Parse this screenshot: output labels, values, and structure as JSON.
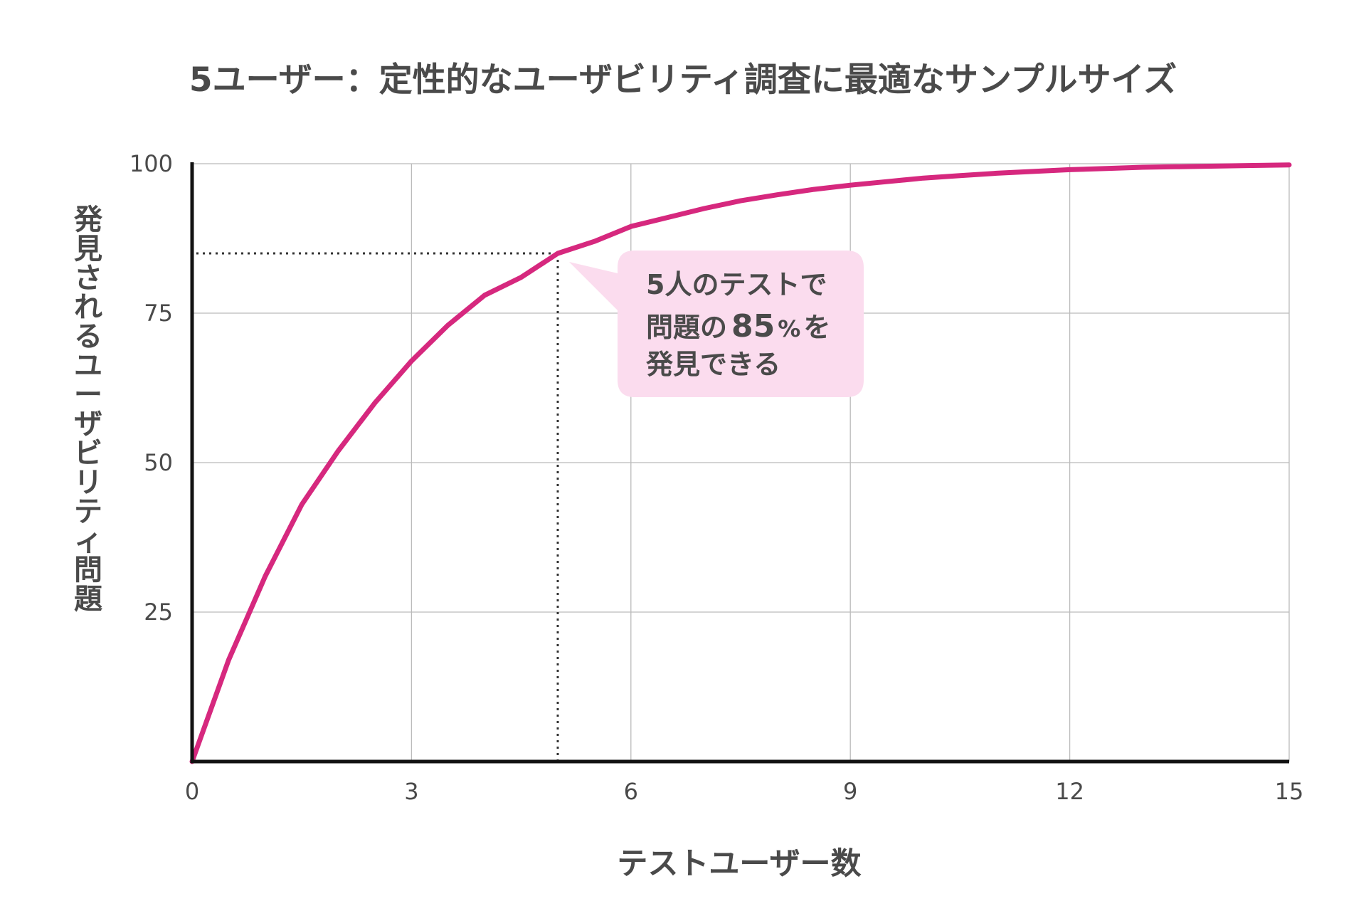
{
  "chart_data": {
    "type": "line",
    "title": "5ユーザー：定性的なユーザビリティ調査に最適なサンプルサイズ",
    "xlabel": "テストユーザー数",
    "ylabel": "発見されるユーザビリティ問題",
    "xlim": [
      0,
      15
    ],
    "ylim": [
      0,
      100
    ],
    "x_ticks": [
      "0",
      "3",
      "6",
      "9",
      "12",
      "15"
    ],
    "y_ticks": [
      "25",
      "50",
      "75",
      "100"
    ],
    "grid": true,
    "series": [
      {
        "x": [
          0,
          0.5,
          1,
          1.5,
          2,
          2.5,
          3,
          3.5,
          4,
          4.5,
          5,
          5.5,
          6,
          6.5,
          7,
          7.5,
          8,
          8.5,
          9,
          9.5,
          10,
          10.5,
          11,
          11.5,
          12,
          12.5,
          13,
          13.5,
          14,
          14.5,
          15
        ],
        "y": [
          0,
          17,
          31,
          43,
          52,
          60,
          67,
          73,
          78,
          81,
          85,
          87,
          89.5,
          91,
          92.5,
          93.8,
          94.8,
          95.7,
          96.4,
          97,
          97.6,
          98,
          98.4,
          98.7,
          99,
          99.2,
          99.4,
          99.5,
          99.6,
          99.7,
          99.8
        ],
        "color": "#d6287e"
      }
    ],
    "highlight": {
      "x": 5,
      "y": 85
    },
    "annotation": {
      "line1": "5人のテストで",
      "line2_a": "問題の",
      "line2_b": "85",
      "line2_c": "%",
      "line2_d": "を",
      "line3": "発見できる",
      "background": "#fbdcee"
    },
    "colors": {
      "axis": "#111111",
      "grid": "#bbbbbb",
      "text": "#4a4a4a",
      "guide": "#333333"
    }
  }
}
